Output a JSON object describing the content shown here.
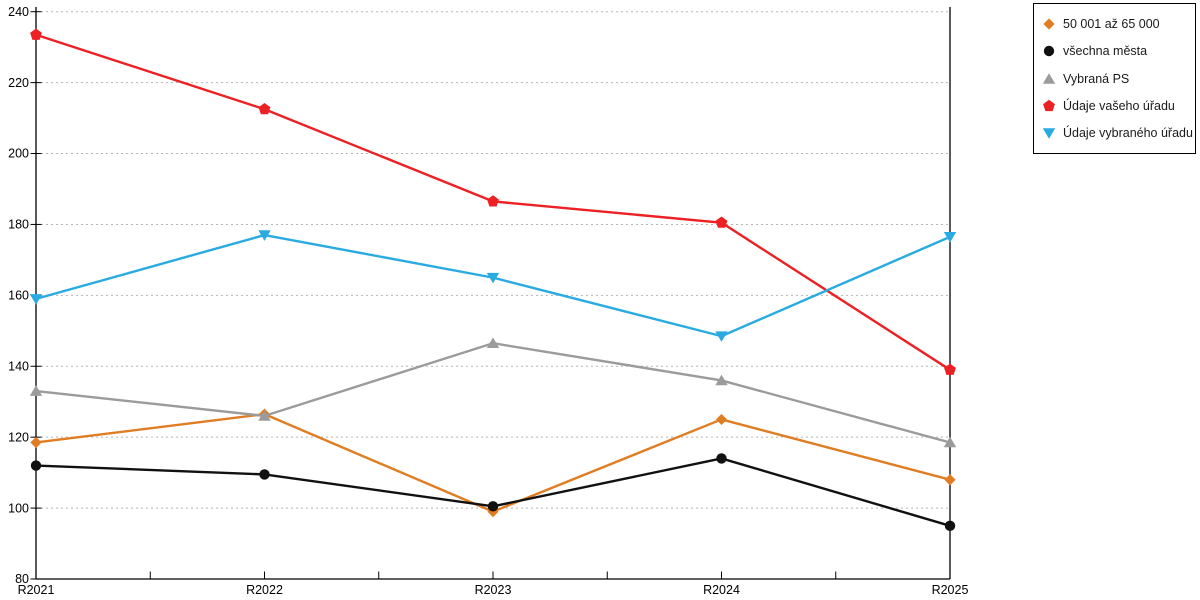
{
  "chart_data": {
    "type": "line",
    "title": "",
    "xlabel": "",
    "ylabel": "",
    "categories": [
      "R2021",
      "R2022",
      "R2023",
      "R2024",
      "R2025"
    ],
    "ylim": [
      80,
      240
    ],
    "y_ticks": [
      80,
      100,
      120,
      140,
      160,
      180,
      200,
      220,
      240
    ],
    "grid": "horizontal-dashed",
    "legend_position": "outside-top-right",
    "series": [
      {
        "name": "50 001 až 65 000",
        "marker": "diamond",
        "color": "#E07D22",
        "values": [
          118.5,
          126.5,
          99,
          125,
          108
        ]
      },
      {
        "name": "všechna města",
        "marker": "circle",
        "color": "#111111",
        "values": [
          112,
          109.5,
          100.5,
          114,
          95
        ]
      },
      {
        "name": "Vybraná PS",
        "marker": "triangle-up",
        "color": "#9B9B9B",
        "values": [
          133,
          126,
          146.5,
          136,
          118.5
        ]
      },
      {
        "name": "Údaje vašeho úřadu",
        "marker": "pentagon",
        "color": "#ED2024",
        "values": [
          233.5,
          212.5,
          186.5,
          180.5,
          139
        ]
      },
      {
        "name": "Údaje vybraného úřadu",
        "marker": "triangle-down",
        "color": "#29ABE2",
        "values": [
          159,
          177,
          165,
          148.5,
          176.5
        ]
      }
    ],
    "colors": {
      "axis": "#000000",
      "gridline": "#b5b5b5",
      "tick_label": "#000000",
      "background": "#ffffff"
    }
  }
}
